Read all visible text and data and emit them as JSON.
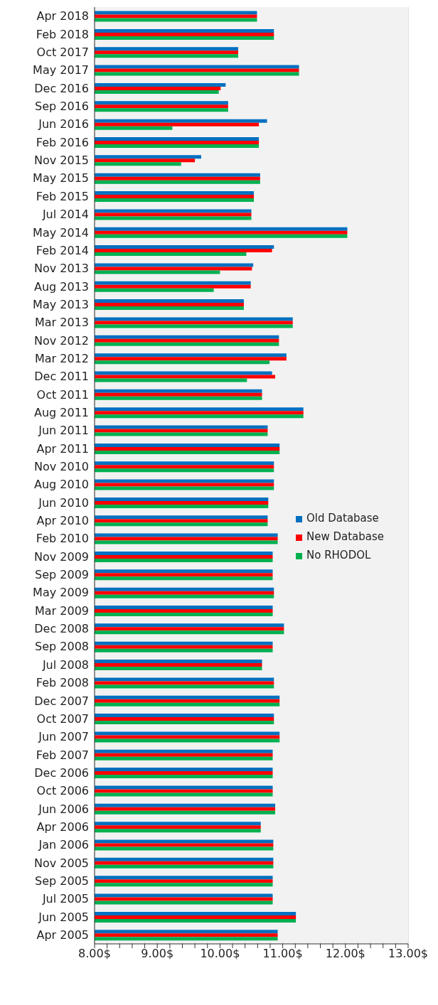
{
  "chart_data": {
    "type": "bar",
    "orientation": "horizontal",
    "categories": [
      "Apr 2018",
      "Feb 2018",
      "Oct 2017",
      "May 2017",
      "Dec 2016",
      "Sep 2016",
      "Jun 2016",
      "Feb 2016",
      "Nov 2015",
      "May 2015",
      "Feb 2015",
      "Jul 2014",
      "May 2014",
      "Feb 2014",
      "Nov 2013",
      "Aug 2013",
      "May 2013",
      "Mar 2013",
      "Nov 2012",
      "Mar 2012",
      "Dec 2011",
      "Oct 2011",
      "Aug 2011",
      "Jun 2011",
      "Apr 2011",
      "Nov 2010",
      "Aug 2010",
      "Jun 2010",
      "Apr 2010",
      "Feb 2010",
      "Nov 2009",
      "Sep 2009",
      "May 2009",
      "Mar 2009",
      "Dec 2008",
      "Sep 2008",
      "Jul 2008",
      "Feb 2008",
      "Dec 2007",
      "Oct 2007",
      "Jun 2007",
      "Feb 2007",
      "Dec 2006",
      "Oct 2006",
      "Jun 2006",
      "Apr 2006",
      "Jan 2006",
      "Nov 2005",
      "Sep 2005",
      "Jul 2005",
      "Jun 2005",
      "Apr 2005"
    ],
    "series": [
      {
        "name": "Old Database",
        "color": "#0070c0",
        "values": [
          10.59,
          10.86,
          10.29,
          11.26,
          10.09,
          10.13,
          10.75,
          10.62,
          9.7,
          10.64,
          10.54,
          10.5,
          12.03,
          10.86,
          10.53,
          10.49,
          10.38,
          11.16,
          10.94,
          11.06,
          10.83,
          10.67,
          11.33,
          10.76,
          10.95,
          10.86,
          10.86,
          10.77,
          10.76,
          10.92,
          10.84,
          10.84,
          10.86,
          10.84,
          11.02,
          10.84,
          10.67,
          10.86,
          10.95,
          10.86,
          10.95,
          10.84,
          10.84,
          10.84,
          10.88,
          10.65,
          10.85,
          10.85,
          10.84,
          10.84,
          11.21,
          10.92
        ]
      },
      {
        "name": "New Database",
        "color": "#ff0000",
        "values": [
          10.59,
          10.86,
          10.29,
          11.26,
          10.01,
          10.13,
          10.62,
          10.62,
          9.6,
          10.64,
          10.54,
          10.5,
          12.03,
          10.83,
          10.51,
          10.49,
          10.38,
          11.16,
          10.94,
          11.06,
          10.88,
          10.67,
          11.33,
          10.76,
          10.95,
          10.86,
          10.86,
          10.77,
          10.76,
          10.92,
          10.84,
          10.84,
          10.86,
          10.84,
          11.02,
          10.84,
          10.67,
          10.86,
          10.95,
          10.86,
          10.95,
          10.84,
          10.84,
          10.84,
          10.88,
          10.65,
          10.85,
          10.85,
          10.84,
          10.84,
          11.21,
          10.92
        ]
      },
      {
        "name": "No RHODOL",
        "color": "#00b050",
        "values": [
          10.59,
          10.86,
          10.29,
          11.26,
          9.98,
          10.13,
          9.24,
          10.62,
          9.38,
          10.64,
          10.54,
          10.5,
          12.03,
          10.42,
          10.0,
          9.9,
          10.38,
          11.16,
          10.94,
          10.79,
          10.43,
          10.67,
          11.33,
          10.76,
          10.95,
          10.86,
          10.86,
          10.77,
          10.76,
          10.92,
          10.84,
          10.84,
          10.86,
          10.84,
          11.02,
          10.84,
          10.67,
          10.86,
          10.95,
          10.86,
          10.95,
          10.84,
          10.84,
          10.84,
          10.88,
          10.65,
          10.85,
          10.85,
          10.84,
          10.84,
          11.21,
          10.92
        ]
      }
    ],
    "xlim": [
      8,
      13
    ],
    "xticks": [
      {
        "value": 8,
        "label": "8.00$"
      },
      {
        "value": 8.2,
        "label": null
      },
      {
        "value": 8.4,
        "label": null
      },
      {
        "value": 8.6,
        "label": null
      },
      {
        "value": 8.8,
        "label": null
      },
      {
        "value": 9,
        "label": "9.00$"
      },
      {
        "value": 9.2,
        "label": null
      },
      {
        "value": 9.4,
        "label": null
      },
      {
        "value": 9.6,
        "label": null
      },
      {
        "value": 9.8,
        "label": null
      },
      {
        "value": 10,
        "label": "10.00$"
      },
      {
        "value": 10.2,
        "label": null
      },
      {
        "value": 10.4,
        "label": null
      },
      {
        "value": 10.6,
        "label": null
      },
      {
        "value": 10.8,
        "label": null
      },
      {
        "value": 11,
        "label": "11.00$"
      },
      {
        "value": 11.2,
        "label": null
      },
      {
        "value": 11.4,
        "label": null
      },
      {
        "value": 11.6,
        "label": null
      },
      {
        "value": 11.8,
        "label": null
      },
      {
        "value": 12,
        "label": "12.00$"
      },
      {
        "value": 12.2,
        "label": null
      },
      {
        "value": 12.4,
        "label": null
      },
      {
        "value": 12.6,
        "label": null
      },
      {
        "value": 12.8,
        "label": null
      },
      {
        "value": 13,
        "label": "13.00$"
      }
    ],
    "grid": "x",
    "legend": "right"
  }
}
